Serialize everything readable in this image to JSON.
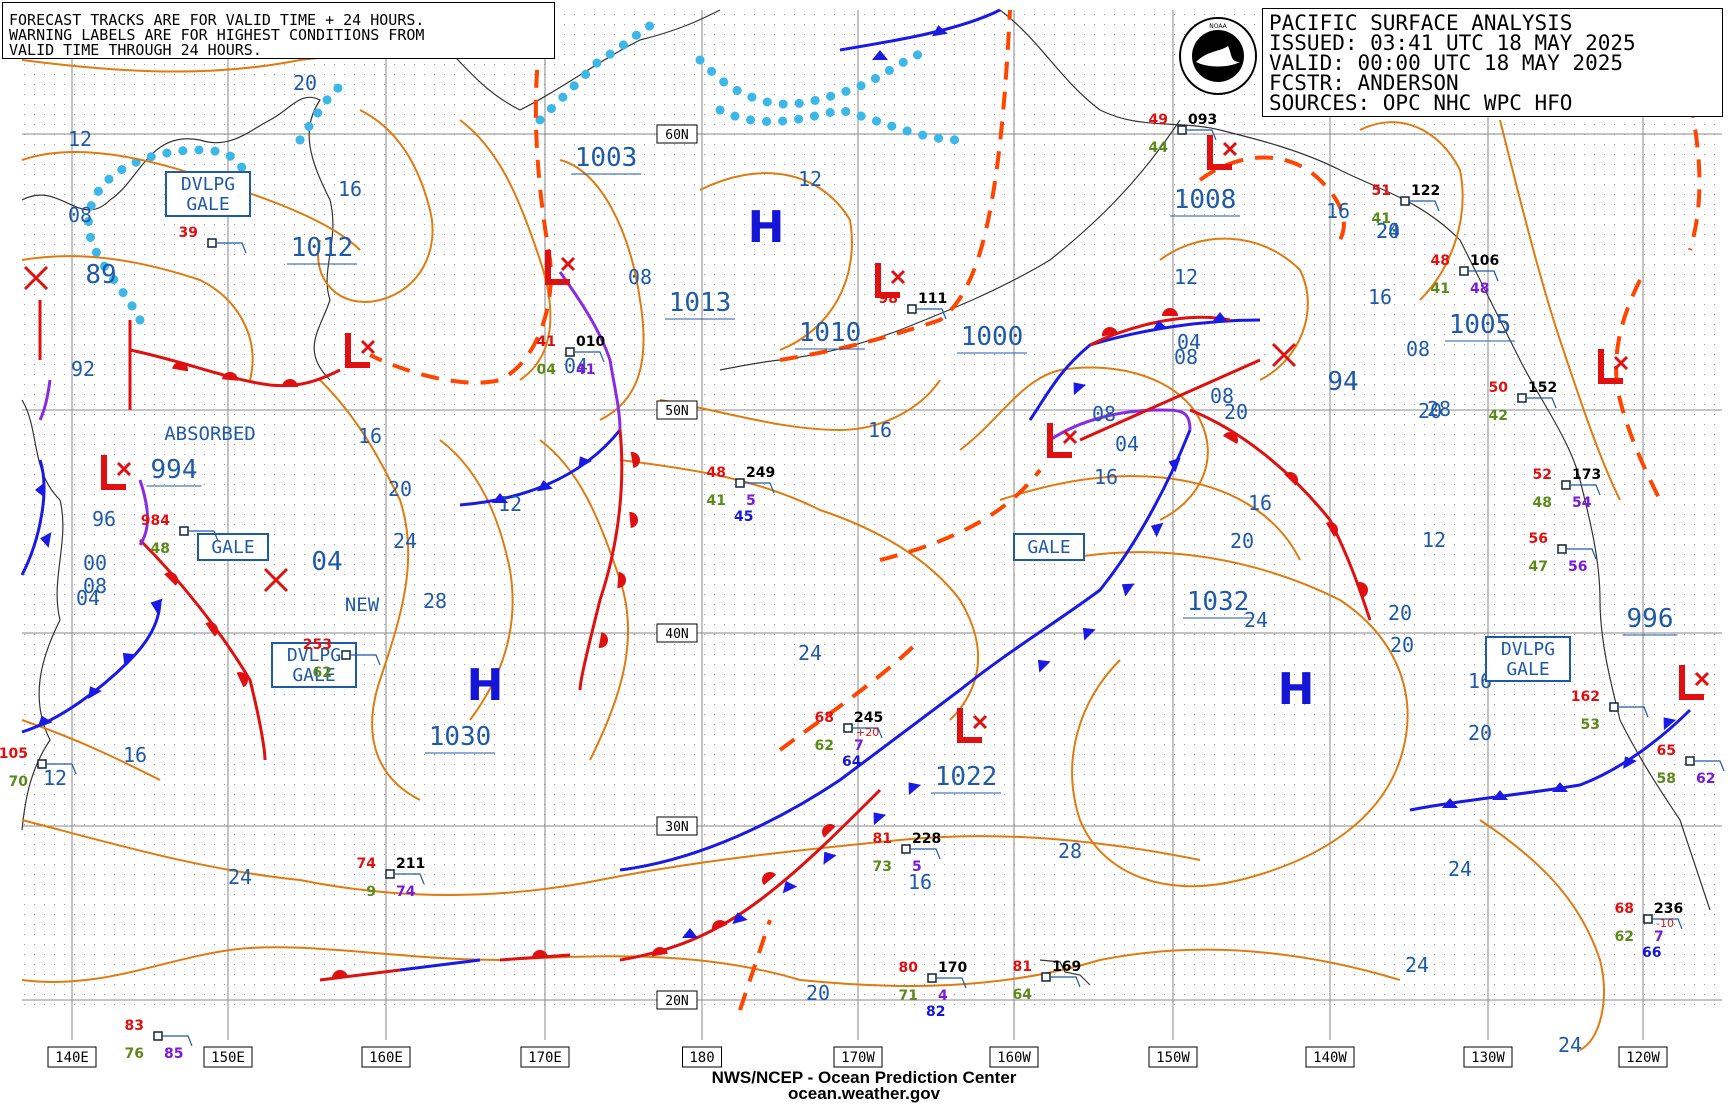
{
  "header": {
    "notes": [
      "FORECAST TRACKS ARE FOR VALID TIME + 24 HOURS.",
      "WARNING LABELS ARE FOR HIGHEST CONDITIONS FROM",
      "VALID TIME THROUGH 24 HOURS."
    ],
    "title_lines": [
      "PACIFIC SURFACE ANALYSIS",
      "ISSUED: 03:41 UTC 18 MAY 2025",
      "VALID:  00:00 UTC 18 MAY 2025",
      "FCSTR:  ANDERSON",
      "SOURCES: OPC NHC WPC HFO"
    ],
    "logo_icon": "noaa-logo-icon"
  },
  "footer": {
    "line1": "NWS/NCEP - Ocean Prediction Center",
    "line2": "ocean.weather.gov"
  },
  "axes": {
    "longitude_labels": [
      "140E",
      "150E",
      "160E",
      "170E",
      "180",
      "170W",
      "160W",
      "150W",
      "140W",
      "130W",
      "120W"
    ],
    "latitude_labels": [
      "60N",
      "50N",
      "40N",
      "30N",
      "20N"
    ]
  },
  "colors": {
    "isobar": "#e07b10",
    "isobar_label": "#1f5aa6",
    "high": "#1515d8",
    "low": "#e01010",
    "cold_front": "#1a1ae6",
    "warm_front": "#e01010",
    "occluded_front": "#8a2be2",
    "trough": "#ff4500",
    "ice_edge": "#3cb8e8",
    "coast": "#333333",
    "grid": "#8a8a8a",
    "gale_box_border": "#1f5aa6"
  },
  "pressure_centers": [
    {
      "type": "H",
      "value": "1030",
      "name": "high-center-1030"
    },
    {
      "type": "H",
      "value": "1032",
      "name": "high-center-1032"
    },
    {
      "type": "H",
      "value": "1013",
      "name": "high-center-1013"
    },
    {
      "type": "L",
      "value": "1003",
      "name": "low-center-1003"
    },
    {
      "type": "L",
      "value": "1012",
      "name": "low-center-1012"
    },
    {
      "type": "L",
      "value": "1010",
      "name": "low-center-1010"
    },
    {
      "type": "L",
      "value": "1000",
      "name": "low-center-1000"
    },
    {
      "type": "L",
      "value": "1008",
      "name": "low-center-1008"
    },
    {
      "type": "L",
      "value": "1005",
      "name": "low-center-1005"
    },
    {
      "type": "L",
      "value": "1022",
      "name": "low-center-1022"
    },
    {
      "type": "L",
      "value": "994",
      "name": "low-center-994"
    },
    {
      "type": "L",
      "value": "996",
      "name": "low-center-996"
    }
  ],
  "forecast_positions": [
    {
      "value": "89",
      "name": "forecast-low-89"
    },
    {
      "value": "04",
      "name": "forecast-low-04"
    },
    {
      "value": "94",
      "name": "forecast-low-94"
    }
  ],
  "warnings": [
    {
      "text": "DVLPG\nGALE",
      "name": "warning-dvlpg-gale-nw"
    },
    {
      "text": "GALE",
      "name": "warning-gale-west"
    },
    {
      "text": "DVLPG\nGALE",
      "name": "warning-dvlpg-gale-west"
    },
    {
      "text": "GALE",
      "name": "warning-gale-central"
    },
    {
      "text": "DVLPG\nGALE",
      "name": "warning-dvlpg-gale-east"
    }
  ],
  "annotations": {
    "absorbed": "ABSORBED",
    "new": "NEW"
  },
  "isobar_labels": [
    "20",
    "12",
    "16",
    "08",
    "16",
    "12",
    "08",
    "12",
    "20",
    "16",
    "24",
    "28",
    "16",
    "04",
    "08",
    "16",
    "20",
    "24",
    "12",
    "04",
    "08",
    "12",
    "20",
    "24",
    "28",
    "16",
    "20",
    "24",
    "24",
    "20",
    "16",
    "16",
    "20",
    "24",
    "20",
    "16",
    "12",
    "04",
    "08",
    "00",
    "96",
    "92",
    "24",
    "04",
    "08",
    "20",
    "28",
    "24",
    "20",
    "16",
    "08"
  ],
  "ship_obs": [
    {
      "id": "39"
    },
    {
      "id": "41",
      "v2": "010",
      "v3": "04",
      "v4": "41"
    },
    {
      "id": "48",
      "v2": "249",
      "v3": "41",
      "v4": "5",
      "v5": "45"
    },
    {
      "id": "68",
      "v2": "245",
      "v3": "62",
      "v4": "7",
      "v5": "64",
      "v6": "+20"
    },
    {
      "id": "81",
      "v2": "228",
      "v3": "73",
      "v4": "5"
    },
    {
      "id": "80",
      "v2": "170",
      "v3": "71",
      "v4": "4",
      "v5": "82"
    },
    {
      "id": "81",
      "v2": "169",
      "v3": "64"
    },
    {
      "id": "74",
      "v2": "211",
      "v3": "9",
      "v4": "74"
    },
    {
      "id": "83",
      "v3": "76",
      "v4": "85"
    },
    {
      "id": "49",
      "v2": "093",
      "v3": "44"
    },
    {
      "id": "51",
      "v2": "122",
      "v3": "41"
    },
    {
      "id": "48",
      "v2": "106",
      "v3": "41",
      "v4": "48"
    },
    {
      "id": "50",
      "v2": "152",
      "v3": "42"
    },
    {
      "id": "52",
      "v2": "173",
      "v3": "48",
      "v4": "54"
    },
    {
      "id": "56",
      "v3": "47",
      "v4": "56"
    },
    {
      "id": "162",
      "v3": "53"
    },
    {
      "id": "65",
      "v3": "58",
      "v4": "62"
    },
    {
      "id": "68",
      "v2": "236",
      "v3": "62",
      "v4": "7",
      "v5": "66",
      "v6": "-10"
    },
    {
      "id": "98",
      "v2": "111"
    },
    {
      "id": "984",
      "v3": "48"
    },
    {
      "id": "253",
      "v3": "62"
    },
    {
      "id": "105",
      "v3": "70"
    }
  ]
}
